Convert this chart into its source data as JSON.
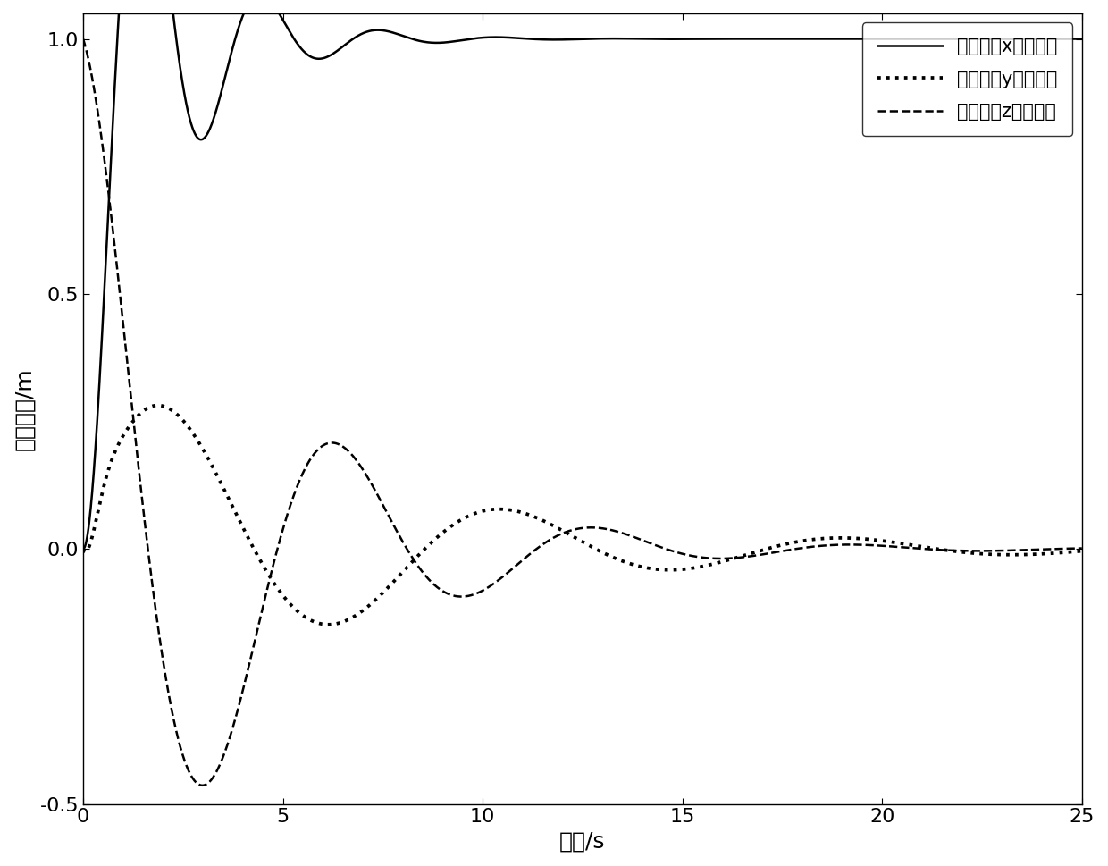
{
  "title": "",
  "xlabel": "时间/s",
  "ylabel": "卫星指向/m",
  "xlim": [
    0,
    25
  ],
  "ylim": [
    -0.5,
    1.05
  ],
  "xticks": [
    0,
    5,
    10,
    15,
    20,
    25
  ],
  "yticks": [
    -0.5,
    0,
    0.5,
    1
  ],
  "legend_x": "卫星指向x方向坐标",
  "legend_y": "卫星指向y方向坐标",
  "legend_z": "卫星指向z方向坐标",
  "bg_color": "#ffffff",
  "line_color": "#000000",
  "linewidth": 1.8,
  "fontsize_label": 18,
  "fontsize_tick": 16,
  "fontsize_legend": 15
}
